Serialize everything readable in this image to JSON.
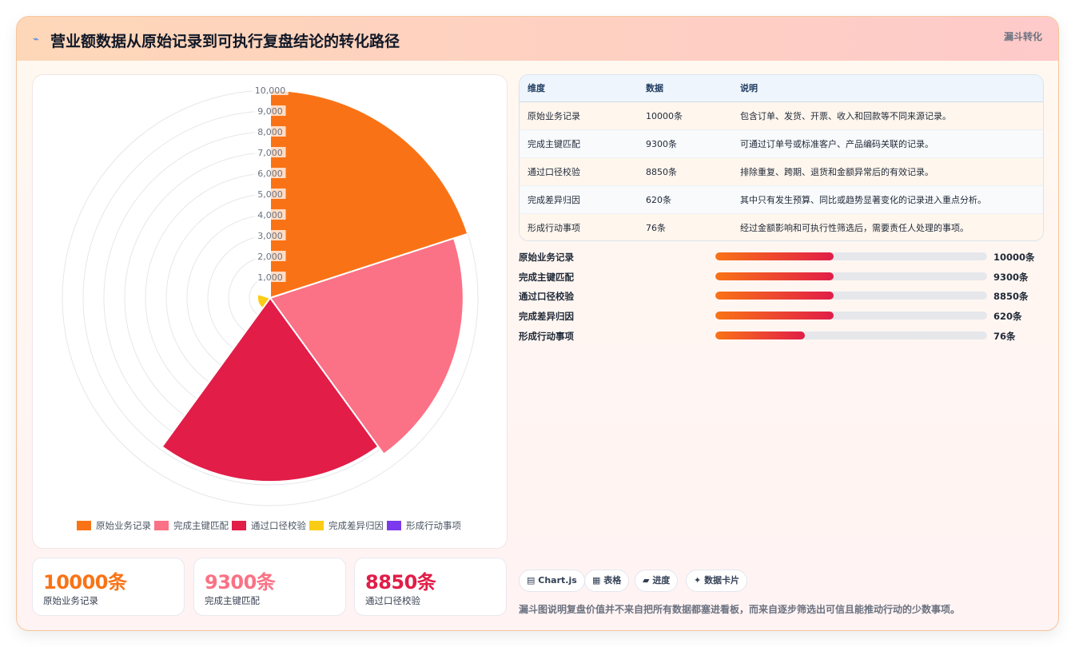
{
  "header": {
    "icon": "lightning-icon",
    "title": "营业额数据从原始记录到可执行复盘结论的转化路径",
    "tag": "漏斗转化"
  },
  "chart_data": {
    "type": "polarArea",
    "categories": [
      "原始业务记录",
      "完成主键匹配",
      "通过口径校验",
      "完成差异归因",
      "形成行动事项"
    ],
    "values": [
      10000,
      9300,
      8850,
      620,
      76
    ],
    "colors": [
      "#f97316",
      "#fb7185",
      "#e11d48",
      "#facc15",
      "#7c3aed"
    ],
    "rlim": [
      0,
      10000
    ],
    "ticks": [
      "1,000",
      "2,000",
      "3,000",
      "4,000",
      "5,000",
      "6,000",
      "7,000",
      "8,000",
      "9,000",
      "10,000"
    ],
    "legend_position": "bottom",
    "grid": true
  },
  "table": {
    "headers": [
      "维度",
      "数据",
      "说明"
    ],
    "rows": [
      {
        "dim": "原始业务记录",
        "data": "10000条",
        "desc": "包含订单、发货、开票、收入和回款等不同来源记录。"
      },
      {
        "dim": "完成主键匹配",
        "data": "9300条",
        "desc": "可通过订单号或标准客户、产品编码关联的记录。"
      },
      {
        "dim": "通过口径校验",
        "data": "8850条",
        "desc": "排除重复、跨期、退货和金额异常后的有效记录。"
      },
      {
        "dim": "完成差异归因",
        "data": "620条",
        "desc": "其中只有发生预算、同比或趋势显著变化的记录进入重点分析。"
      },
      {
        "dim": "形成行动事项",
        "data": "76条",
        "desc": "经过金额影响和可执行性筛选后，需要责任人处理的事项。"
      }
    ]
  },
  "progress": [
    {
      "label": "原始业务记录",
      "value": "10000条",
      "fill": 0.435
    },
    {
      "label": "完成主键匹配",
      "value": "9300条",
      "fill": 0.435
    },
    {
      "label": "通过口径校验",
      "value": "8850条",
      "fill": 0.435
    },
    {
      "label": "完成差异归因",
      "value": "620条",
      "fill": 0.435
    },
    {
      "label": "形成行动事项",
      "value": "76条",
      "fill": 0.33
    }
  ],
  "stats": [
    {
      "value": "10000条",
      "label": "原始业务记录",
      "color": "#f97316"
    },
    {
      "value": "9300条",
      "label": "完成主键匹配",
      "color": "#fb7185"
    },
    {
      "value": "8850条",
      "label": "通过口径校验",
      "color": "#e11d48"
    }
  ],
  "chips": [
    {
      "icon": "chart-icon",
      "glyph": "▤",
      "label": "Chart.js"
    },
    {
      "icon": "table-icon",
      "glyph": "▦",
      "label": "表格"
    },
    {
      "icon": "progress-icon",
      "glyph": "▰",
      "label": "进度"
    },
    {
      "icon": "sparkle-icon",
      "glyph": "✦",
      "label": "数据卡片"
    }
  ],
  "footnote": "漏斗图说明复盘价值并不来自把所有数据都塞进看板，而来自逐步筛选出可信且能推动行动的少数事项。"
}
